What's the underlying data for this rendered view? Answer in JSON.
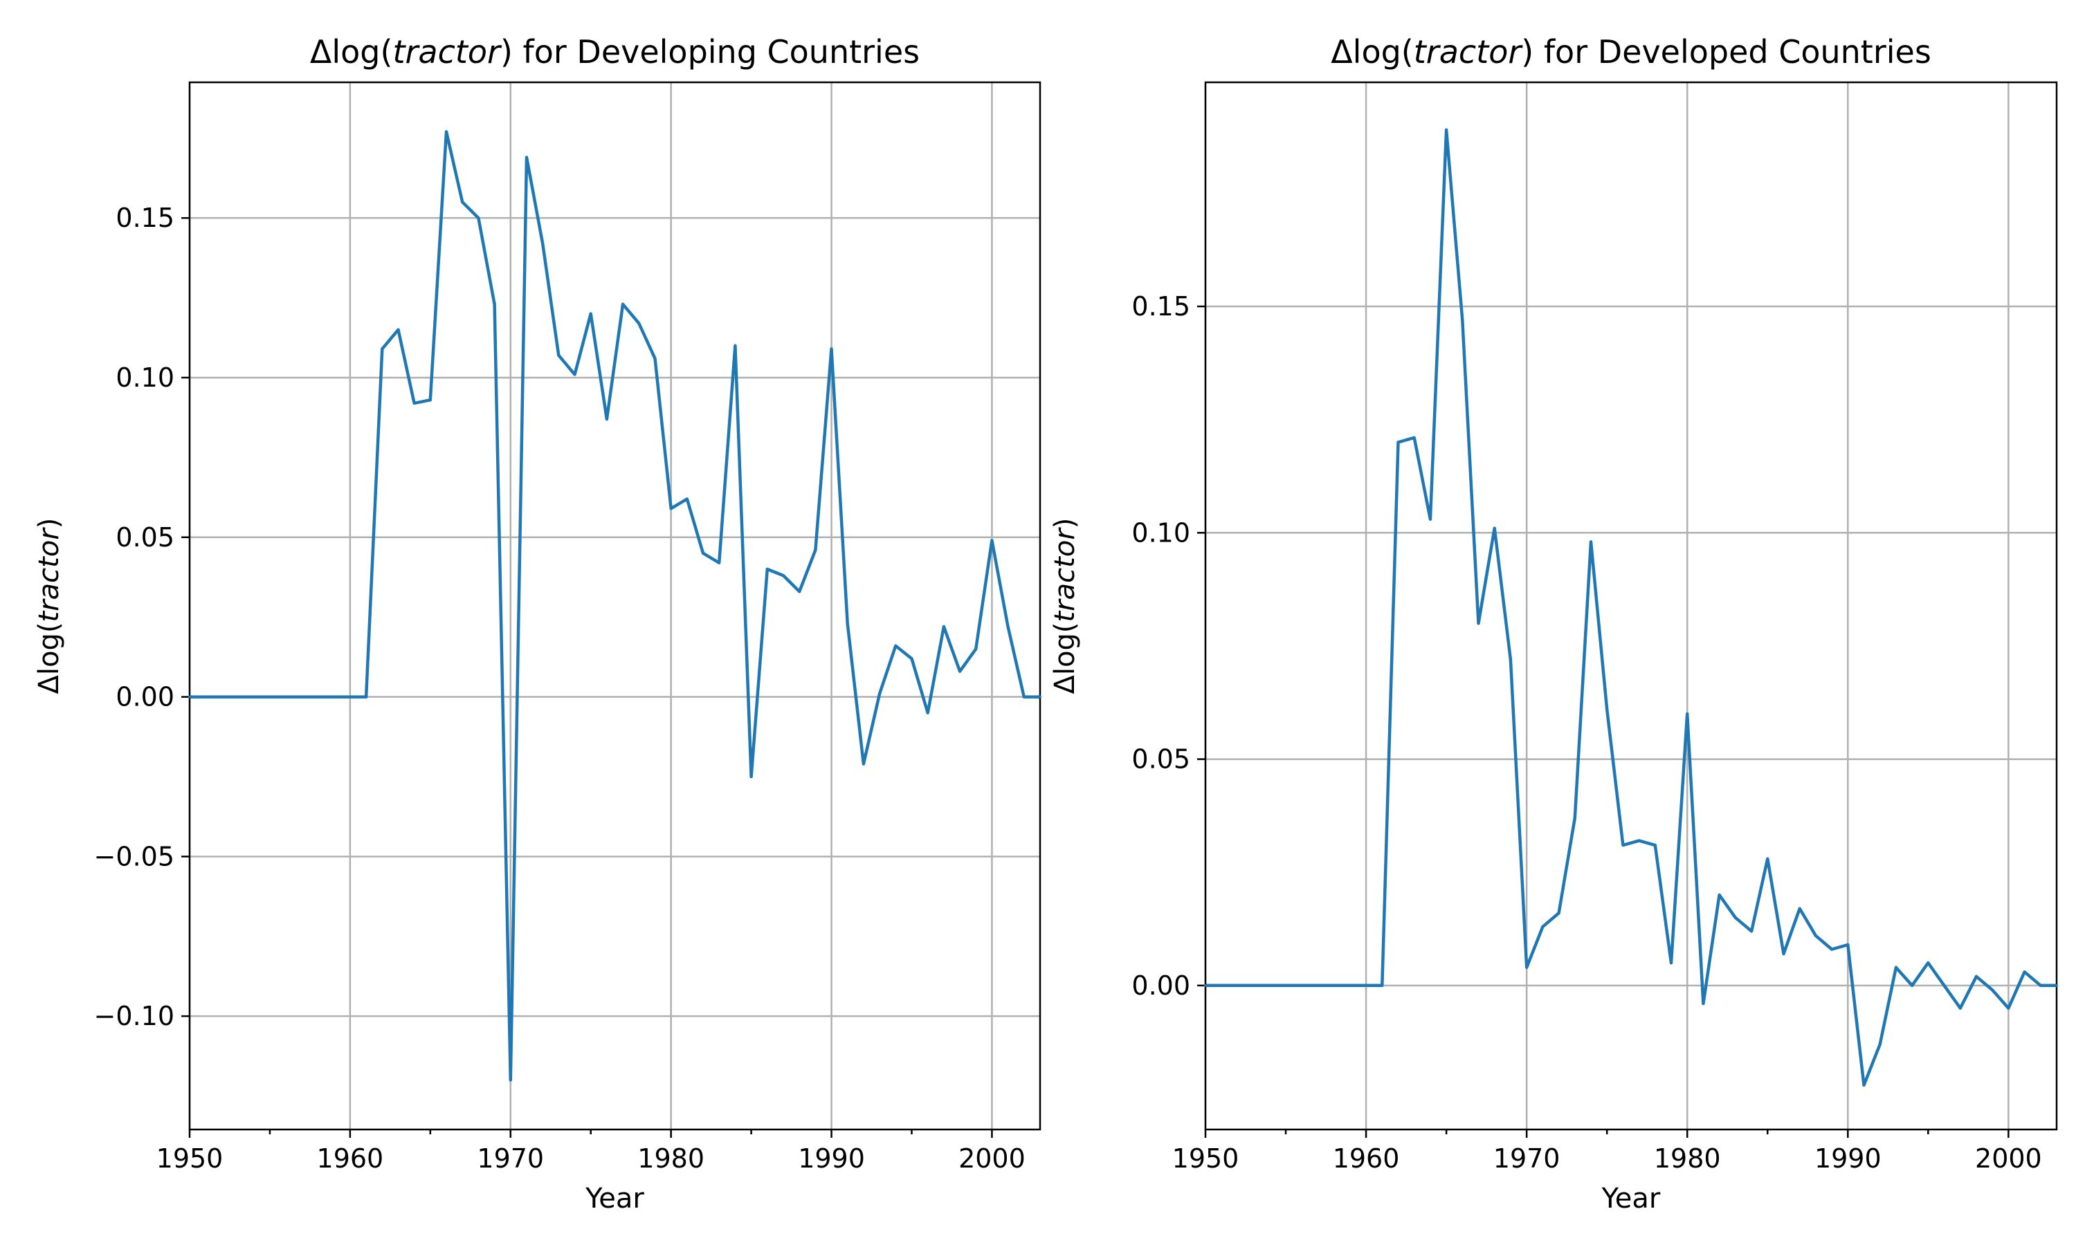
{
  "chart_data": [
    {
      "type": "line",
      "title_prefix": "Δlog(",
      "title_var": "tractor",
      "title_suffix": ") for Developing Countries",
      "xlabel": "Year",
      "ylabel_prefix": "Δlog(",
      "ylabel_var": "tractor",
      "ylabel_suffix": ")",
      "xlim": [
        1950,
        2003
      ],
      "ylim": [
        -0.1355,
        0.1925
      ],
      "xticks": [
        1950,
        1960,
        1970,
        1980,
        1990,
        2000
      ],
      "xtick_labels": [
        "1950",
        "1960",
        "1970",
        "1980",
        "1990",
        "2000"
      ],
      "xminor_ticks": [
        1955,
        1965,
        1975,
        1985,
        1995
      ],
      "yticks": [
        -0.1,
        -0.05,
        0.0,
        0.05,
        0.1,
        0.15
      ],
      "ytick_labels": [
        "−0.10",
        "−0.05",
        "0.00",
        "0.05",
        "0.10",
        "0.15"
      ],
      "grid": true,
      "color": "#1f77b4",
      "series": [
        {
          "x": [
            1950,
            1951,
            1952,
            1953,
            1954,
            1955,
            1956,
            1957,
            1958,
            1959,
            1960,
            1961,
            1962,
            1963,
            1964,
            1965,
            1966,
            1967,
            1968,
            1969,
            1970,
            1971,
            1972,
            1973,
            1974,
            1975,
            1976,
            1977,
            1978,
            1979,
            1980,
            1981,
            1982,
            1983,
            1984,
            1985,
            1986,
            1987,
            1988,
            1989,
            1990,
            1991,
            1992,
            1993,
            1994,
            1995,
            1996,
            1997,
            1998,
            1999,
            2000,
            2001,
            2002,
            2003
          ],
          "y": [
            0,
            0,
            0,
            0,
            0,
            0,
            0,
            0,
            0,
            0,
            0,
            0,
            0.109,
            0.115,
            0.092,
            0.093,
            0.177,
            0.155,
            0.15,
            0.123,
            -0.12,
            0.169,
            0.142,
            0.107,
            0.101,
            0.12,
            0.087,
            0.123,
            0.117,
            0.106,
            0.059,
            0.062,
            0.045,
            0.042,
            0.11,
            -0.025,
            0.04,
            0.038,
            0.033,
            0.046,
            0.109,
            0.023,
            -0.021,
            0.001,
            0.016,
            0.012,
            -0.005,
            0.022,
            0.008,
            0.015,
            0.049,
            0.022,
            0,
            0
          ]
        }
      ]
    },
    {
      "type": "line",
      "title_prefix": "Δlog(",
      "title_var": "tractor",
      "title_suffix": ") for Developed Countries",
      "xlabel": "Year",
      "ylabel_prefix": "Δlog(",
      "ylabel_var": "tractor",
      "ylabel_suffix": ")",
      "xlim": [
        1950,
        2003
      ],
      "ylim": [
        -0.0318,
        0.1995
      ],
      "xticks": [
        1950,
        1960,
        1970,
        1980,
        1990,
        2000
      ],
      "xtick_labels": [
        "1950",
        "1960",
        "1970",
        "1980",
        "1990",
        "2000"
      ],
      "xminor_ticks": [
        1955,
        1965,
        1975,
        1985,
        1995
      ],
      "yticks": [
        0.0,
        0.05,
        0.1,
        0.15
      ],
      "ytick_labels": [
        "0.00",
        "0.05",
        "0.10",
        "0.15"
      ],
      "grid": true,
      "color": "#1f77b4",
      "series": [
        {
          "x": [
            1950,
            1951,
            1952,
            1953,
            1954,
            1955,
            1956,
            1957,
            1958,
            1959,
            1960,
            1961,
            1962,
            1963,
            1964,
            1965,
            1966,
            1967,
            1968,
            1969,
            1970,
            1971,
            1972,
            1973,
            1974,
            1975,
            1976,
            1977,
            1978,
            1979,
            1980,
            1981,
            1982,
            1983,
            1984,
            1985,
            1986,
            1987,
            1988,
            1989,
            1990,
            1991,
            1992,
            1993,
            1994,
            1995,
            1996,
            1997,
            1998,
            1999,
            2000,
            2001,
            2002,
            2003
          ],
          "y": [
            0,
            0,
            0,
            0,
            0,
            0,
            0,
            0,
            0,
            0,
            0,
            0,
            0.12,
            0.121,
            0.103,
            0.189,
            0.147,
            0.08,
            0.101,
            0.072,
            0.004,
            0.013,
            0.016,
            0.037,
            0.098,
            0.061,
            0.031,
            0.032,
            0.031,
            0.005,
            0.06,
            -0.004,
            0.02,
            0.015,
            0.012,
            0.028,
            0.007,
            0.017,
            0.011,
            0.008,
            0.009,
            -0.022,
            -0.013,
            0.004,
            0.0,
            0.005,
            0.0,
            -0.005,
            0.002,
            -0.001,
            -0.005,
            0.003,
            0,
            0
          ]
        }
      ]
    }
  ]
}
